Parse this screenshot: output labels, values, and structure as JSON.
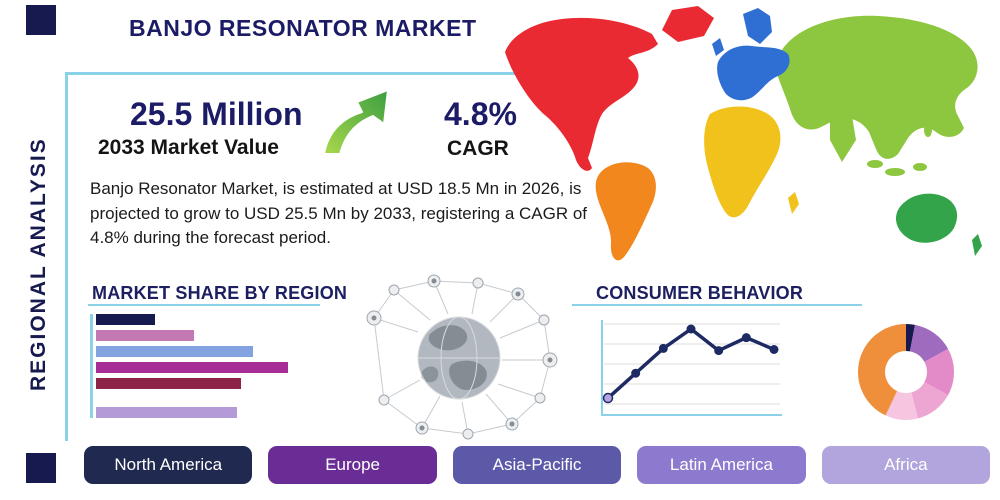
{
  "theme": {
    "navy": "#171a4f",
    "heading_navy": "#1b1b66",
    "accent_line": "#8ad2e8",
    "text": "#1a1a1a",
    "arrow_green_light": "#a9d84b",
    "arrow_green_dark": "#3c9e41",
    "background": "#ffffff"
  },
  "header": {
    "title": "BANJO RESONATOR MARKET",
    "side_label": "REGIONAL ANALYSIS"
  },
  "stats": {
    "market_value": "25.5 Million",
    "market_value_label": "2033 Market Value",
    "cagr_value": "4.8%",
    "cagr_label": "CAGR",
    "description": "Banjo Resonator Market, is estimated at USD 18.5 Mn in 2026, is projected to grow to USD 25.5 Mn by 2033, registering a CAGR of 4.8% during the forecast period."
  },
  "sections": {
    "market_share_title": "MARKET SHARE BY REGION",
    "consumer_behavior_title": "CONSUMER BEHAVIOR"
  },
  "region_buttons": [
    {
      "label": "North America",
      "color": "#20294f"
    },
    {
      "label": "Europe",
      "color": "#6a2d96"
    },
    {
      "label": "Asia-Pacific",
      "color": "#5c59a8"
    },
    {
      "label": "Latin America",
      "color": "#8d7ace"
    },
    {
      "label": "Africa",
      "color": "#b2a4dc"
    }
  ],
  "map_colors": {
    "north_america": "#ea2a33",
    "greenland": "#ea2a33",
    "south_america": "#f2871d",
    "europe": "#2f6fd3",
    "scandinavia": "#2f6fd3",
    "uk": "#2f6fd3",
    "africa": "#f1c21b",
    "madagascar": "#f1c21b",
    "asia": "#8dc63f",
    "india": "#8dc63f",
    "japan": "#8dc63f",
    "southeast_asia_islands": "#8dc63f",
    "australia": "#33a44a",
    "new_zealand": "#33a44a"
  },
  "chart_data": [
    {
      "type": "bar",
      "title": "MARKET SHARE BY REGION",
      "orientation": "horizontal",
      "labels_visible": false,
      "values": [
        30,
        50,
        80,
        98,
        74,
        72
      ],
      "value_unit": "relative share, estimated from bar lengths (max = 100)",
      "colors": [
        "#171a4f",
        "#c478b4",
        "#82a3e0",
        "#a62d96",
        "#8d2346",
        "#b49bd8"
      ],
      "grid": false
    },
    {
      "type": "line",
      "title": "CONSUMER BEHAVIOR",
      "labels_visible": false,
      "x": [
        1,
        2,
        3,
        4,
        5,
        6,
        7
      ],
      "values": [
        12,
        35,
        58,
        76,
        56,
        68,
        57
      ],
      "value_unit": "relative level, estimated from point heights (max = 80)",
      "line_color": "#1d2a63",
      "first_marker_color": "#b5a3e0",
      "grid": true,
      "legend": false
    },
    {
      "type": "pie",
      "title": "",
      "donut": true,
      "labels_visible": false,
      "slices": [
        {
          "color": "#171a4f",
          "value": 3
        },
        {
          "color": "#9e6bbf",
          "value": 14
        },
        {
          "color": "#e38bc8",
          "value": 16
        },
        {
          "color": "#eda6d2",
          "value": 13
        },
        {
          "color": "#f6c6e0",
          "value": 11
        },
        {
          "color": "#ef8f3c",
          "value": 43
        }
      ],
      "value_unit": "percent, estimated from arc angles"
    }
  ]
}
